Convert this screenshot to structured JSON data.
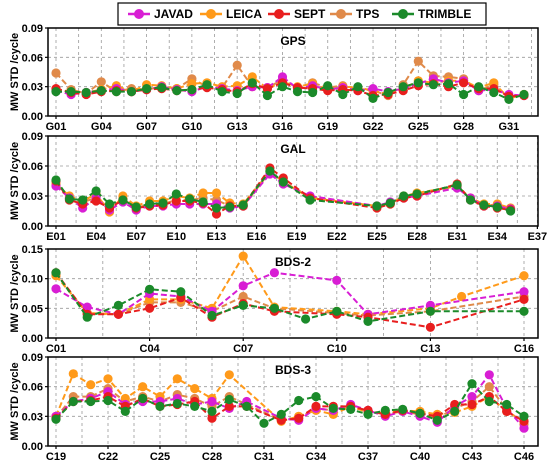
{
  "chart_data": [
    {
      "type": "line",
      "title": "GPS",
      "ylabel": "MW STD /cycle",
      "ylim": [
        0,
        0.09
      ],
      "yticks": [
        "0.00",
        "0.03",
        "0.06",
        "0.09"
      ],
      "x": [
        "G01",
        "G02",
        "G03",
        "G04",
        "G05",
        "G06",
        "G07",
        "G08",
        "G09",
        "G10",
        "G11",
        "G12",
        "G13",
        "G14",
        "G15",
        "G16",
        "G17",
        "G18",
        "G19",
        "G20",
        "G21",
        "G22",
        "G23",
        "G24",
        "G25",
        "G26",
        "G27",
        "G28",
        "G29",
        "G30",
        "G31",
        "G32"
      ],
      "xticks": [
        "G01",
        "G04",
        "G07",
        "G10",
        "G13",
        "G16",
        "G19",
        "G22",
        "G25",
        "G28",
        "G31"
      ],
      "grid": true,
      "series": [
        {
          "name": "JAVAD",
          "values": [
            0.026,
            0.022,
            0.024,
            0.026,
            0.028,
            0.025,
            0.027,
            0.03,
            0.027,
            0.025,
            0.03,
            0.028,
            0.026,
            0.03,
            0.029,
            0.04,
            0.028,
            0.031,
            0.027,
            0.029,
            0.026,
            0.028,
            0.025,
            0.028,
            0.033,
            0.038,
            0.034,
            0.036,
            0.026,
            0.027,
            0.022,
            0.021
          ]
        },
        {
          "name": "LEICA",
          "values": [
            0.027,
            0.025,
            0.024,
            0.027,
            0.031,
            0.025,
            0.032,
            0.031,
            0.028,
            0.033,
            0.034,
            0.03,
            0.031,
            0.04,
            0.028,
            0.035,
            0.03,
            0.033,
            0.027,
            0.03,
            0.029,
            0.026,
            0.022,
            0.028,
            0.036,
            0.034,
            0.036,
            0.036,
            0.029,
            0.034,
            0.018,
            0.022
          ]
        },
        {
          "name": "SEPT",
          "values": [
            0.028,
            0.024,
            0.022,
            0.025,
            0.026,
            0.025,
            0.027,
            0.028,
            0.026,
            0.027,
            0.029,
            0.027,
            0.025,
            0.033,
            0.028,
            0.034,
            0.029,
            0.028,
            0.026,
            0.027,
            0.026,
            0.021,
            0.022,
            0.026,
            0.031,
            0.033,
            0.03,
            0.034,
            0.028,
            0.028,
            0.02,
            0.021
          ]
        },
        {
          "name": "TPS",
          "values": [
            0.044,
            0.027,
            0.023,
            0.035,
            0.025,
            0.028,
            0.027,
            0.03,
            0.028,
            0.038,
            0.03,
            0.029,
            0.052,
            0.03,
            0.029,
            0.037,
            0.029,
            0.034,
            0.029,
            0.031,
            0.028,
            0.026,
            0.021,
            0.032,
            0.056,
            0.041,
            0.04,
            0.038,
            0.026,
            0.032,
            0.019,
            0.022
          ]
        },
        {
          "name": "TRIMBLE",
          "values": [
            0.025,
            0.025,
            0.024,
            0.026,
            0.025,
            0.025,
            0.028,
            0.029,
            0.026,
            0.027,
            0.032,
            0.025,
            0.023,
            0.034,
            0.021,
            0.03,
            0.025,
            0.024,
            0.031,
            0.022,
            0.03,
            0.018,
            0.024,
            0.03,
            0.034,
            0.032,
            0.033,
            0.022,
            0.03,
            0.024,
            0.017,
            0.022
          ]
        }
      ]
    },
    {
      "type": "line",
      "title": "GAL",
      "ylabel": "MW STD /cycle",
      "ylim": [
        0,
        0.09
      ],
      "yticks": [
        "0.00",
        "0.03",
        "0.06",
        "0.09"
      ],
      "x": [
        "E01",
        "E02",
        "E03",
        "E04",
        "E05",
        "E06",
        "E07",
        "E08",
        "E09",
        "E10",
        "E11",
        "E12",
        "E13",
        "E14",
        "E15",
        "E16",
        "E17",
        "E18",
        "E19",
        "E20",
        "E21",
        "E22",
        "E23",
        "E24",
        "E25",
        "E26",
        "E27",
        "E28",
        "E29",
        "E30",
        "E31",
        "E32",
        "E33",
        "E34",
        "E35",
        "E36"
      ],
      "xticks": [
        "E01",
        "E04",
        "E07",
        "E10",
        "E13",
        "E16",
        "E19",
        "E22",
        "E25",
        "E28",
        "E31",
        "E34",
        "E37"
      ],
      "grid": true,
      "series": [
        {
          "name": "JAVAD",
          "values": [
            0.04,
            0.028,
            0.018,
            0.028,
            0.016,
            0.024,
            0.016,
            0.02,
            0.02,
            0.022,
            0.022,
            0.022,
            0.022,
            0.018,
            0.02,
            null,
            0.052,
            0.042,
            null,
            0.03,
            null,
            null,
            null,
            null,
            0.02,
            0.024,
            0.028,
            0.03,
            null,
            null,
            0.038,
            0.028,
            0.02,
            0.02,
            0.017,
            null
          ]
        },
        {
          "name": "LEICA",
          "values": [
            0.042,
            0.03,
            0.025,
            0.032,
            0.014,
            0.03,
            0.02,
            0.025,
            0.025,
            0.03,
            0.028,
            0.033,
            0.033,
            0.023,
            0.022,
            null,
            0.055,
            0.044,
            null,
            0.028,
            null,
            null,
            null,
            null,
            0.02,
            0.022,
            0.03,
            0.033,
            null,
            null,
            0.04,
            0.028,
            0.022,
            0.022,
            0.018,
            null
          ]
        },
        {
          "name": "SEPT",
          "values": [
            0.045,
            0.026,
            0.022,
            0.025,
            0.018,
            0.026,
            0.018,
            0.02,
            0.021,
            0.025,
            0.025,
            0.023,
            0.012,
            0.02,
            0.02,
            null,
            0.058,
            0.048,
            null,
            0.028,
            null,
            null,
            null,
            null,
            0.018,
            0.022,
            0.028,
            0.03,
            null,
            null,
            0.042,
            0.026,
            0.02,
            0.018,
            0.016,
            null
          ]
        },
        {
          "name": "TPS",
          "values": [
            0.041,
            0.028,
            0.024,
            0.028,
            0.018,
            0.027,
            0.018,
            0.022,
            0.022,
            0.026,
            0.026,
            0.028,
            0.026,
            0.02,
            0.02,
            null,
            0.054,
            0.044,
            null,
            0.029,
            null,
            null,
            null,
            null,
            0.02,
            0.023,
            0.029,
            0.031,
            null,
            null,
            0.04,
            0.027,
            0.021,
            0.021,
            0.017,
            null
          ]
        },
        {
          "name": "TRIMBLE",
          "values": [
            0.046,
            0.027,
            0.026,
            0.035,
            0.022,
            0.026,
            0.019,
            0.022,
            0.023,
            0.032,
            0.027,
            0.024,
            0.018,
            0.019,
            0.021,
            null,
            0.055,
            0.044,
            null,
            0.026,
            null,
            null,
            null,
            null,
            0.02,
            0.023,
            0.03,
            0.032,
            null,
            null,
            0.041,
            0.026,
            0.021,
            0.019,
            0.015,
            null
          ]
        }
      ]
    },
    {
      "type": "line",
      "title": "BDS-2",
      "ylabel": "MW STD /cycle",
      "ylim": [
        0,
        0.15
      ],
      "yticks": [
        "0.00",
        "0.05",
        "0.10",
        "0.15"
      ],
      "x": [
        "C01",
        "C02",
        "C03",
        "C04",
        "C05",
        "C06",
        "C07",
        "C08",
        "C09",
        "C10",
        "C11",
        "C12",
        "C13",
        "C14",
        "C15",
        "C16"
      ],
      "xticks": [
        "C01",
        "C04",
        "C07",
        "C10",
        "C13",
        "C16"
      ],
      "grid": true,
      "series": [
        {
          "name": "JAVAD",
          "values": [
            0.083,
            0.052,
            0.04,
            0.075,
            0.07,
            0.045,
            0.088,
            0.11,
            null,
            0.097,
            0.04,
            null,
            0.055,
            null,
            null,
            0.078
          ]
        },
        {
          "name": "LEICA",
          "values": [
            0.105,
            0.042,
            0.04,
            0.065,
            0.065,
            0.05,
            0.138,
            0.052,
            null,
            0.045,
            0.04,
            null,
            0.05,
            0.07,
            null,
            0.105
          ]
        },
        {
          "name": "SEPT",
          "values": [
            0.11,
            0.04,
            0.04,
            0.05,
            0.068,
            0.035,
            0.058,
            0.045,
            null,
            0.04,
            0.035,
            null,
            0.018,
            null,
            null,
            0.065
          ]
        },
        {
          "name": "TPS",
          "values": [
            0.108,
            0.042,
            0.04,
            0.06,
            0.06,
            0.045,
            0.07,
            0.05,
            null,
            0.042,
            0.038,
            null,
            0.045,
            null,
            null,
            0.07
          ]
        },
        {
          "name": "TRIMBLE",
          "values": [
            0.11,
            0.035,
            0.055,
            0.082,
            0.078,
            0.038,
            0.055,
            0.05,
            0.032,
            0.045,
            0.028,
            null,
            0.045,
            null,
            null,
            0.045
          ]
        }
      ]
    },
    {
      "type": "line",
      "title": "BDS-3",
      "ylabel": "MW STD /cycle",
      "ylim": [
        0,
        0.09
      ],
      "yticks": [
        "0.00",
        "0.03",
        "0.06",
        "0.09"
      ],
      "x": [
        "C19",
        "C20",
        "C21",
        "C22",
        "C23",
        "C24",
        "C25",
        "C26",
        "C27",
        "C28",
        "C29",
        "C30",
        "C31",
        "C32",
        "C33",
        "C34",
        "C35",
        "C36",
        "C37",
        "C38",
        "C39",
        "C40",
        "C41",
        "C42",
        "C43",
        "C44",
        "C45",
        "C46"
      ],
      "xticks": [
        "C19",
        "C22",
        "C25",
        "C28",
        "C31",
        "C34",
        "C37",
        "C40",
        "C43",
        "C46"
      ],
      "grid": true,
      "series": [
        {
          "name": "JAVAD",
          "values": [
            0.03,
            0.045,
            0.048,
            0.055,
            0.042,
            0.045,
            0.045,
            0.048,
            0.042,
            0.045,
            0.038,
            0.045,
            null,
            0.028,
            0.026,
            0.038,
            0.036,
            0.042,
            0.036,
            0.03,
            0.035,
            0.03,
            0.024,
            0.04,
            0.05,
            0.072,
            0.038,
            0.018
          ]
        },
        {
          "name": "LEICA",
          "values": [
            0.03,
            0.073,
            0.062,
            0.068,
            0.048,
            0.06,
            0.05,
            0.068,
            0.058,
            0.048,
            0.072,
            null,
            null,
            0.025,
            0.03,
            0.036,
            0.032,
            0.04,
            0.034,
            0.034,
            0.036,
            0.035,
            0.032,
            0.034,
            0.04,
            0.05,
            0.035,
            0.025
          ]
        },
        {
          "name": "SEPT",
          "values": [
            0.028,
            0.045,
            0.046,
            0.05,
            0.04,
            0.048,
            0.04,
            0.042,
            0.045,
            0.028,
            0.04,
            0.04,
            null,
            0.026,
            0.028,
            0.04,
            0.04,
            0.04,
            0.036,
            0.032,
            0.036,
            0.033,
            0.03,
            0.042,
            0.042,
            0.05,
            0.035,
            0.025
          ]
        },
        {
          "name": "TPS",
          "values": [
            0.029,
            0.05,
            0.05,
            0.058,
            0.045,
            0.05,
            0.045,
            0.052,
            0.048,
            0.04,
            0.05,
            0.042,
            null,
            0.026,
            0.028,
            0.038,
            0.036,
            0.04,
            0.035,
            0.032,
            0.035,
            0.032,
            0.028,
            0.038,
            0.045,
            0.06,
            0.037,
            0.022
          ]
        },
        {
          "name": "TRIMBLE",
          "values": [
            0.027,
            0.045,
            0.045,
            0.046,
            0.035,
            0.048,
            0.04,
            0.043,
            0.04,
            0.035,
            0.047,
            0.04,
            0.023,
            0.032,
            0.046,
            0.05,
            0.038,
            0.037,
            0.032,
            0.036,
            0.037,
            0.033,
            0.026,
            0.035,
            0.063,
            0.045,
            0.042,
            0.03
          ]
        }
      ]
    }
  ],
  "legend": {
    "placement": "top",
    "items": [
      {
        "label": "JAVAD",
        "color": "#d81ed4"
      },
      {
        "label": "LEICA",
        "color": "#ff9a1a"
      },
      {
        "label": "SEPT",
        "color": "#e81e1e"
      },
      {
        "label": "TPS",
        "color": "#e08a4a"
      },
      {
        "label": "TRIMBLE",
        "color": "#1b8a2a"
      }
    ]
  }
}
